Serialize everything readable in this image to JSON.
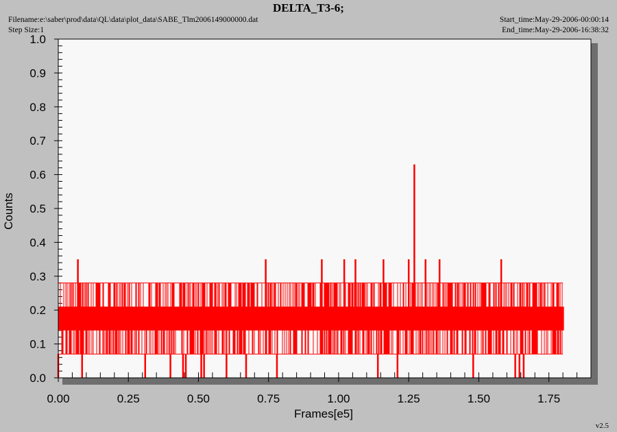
{
  "header": {
    "title": "DELTA_T3-6;",
    "filename": "Filename:e:\\saber\\prod\\data\\QL\\data\\plot_data\\SABE_Tlm2006149000000.dat",
    "step_size": "Step Size:1",
    "start_time": "Start_time:May-29-2006-00:00:14",
    "end_time": "End_time:May-29-2006-16:38:32",
    "version": "v2.5"
  },
  "colors": {
    "series": "#ff0000",
    "plot_background": "#f8f8f8",
    "page_background": "#c0c0c0",
    "shadow": "#6e6e6e"
  },
  "chart_data": {
    "type": "line",
    "title": "DELTA_T3-6;",
    "xlabel": "Frames[e5]",
    "ylabel": "Counts",
    "xlim": [
      0,
      1.9
    ],
    "ylim": [
      0,
      1.0
    ],
    "x_ticks": [
      "0.00",
      "0.25",
      "0.50",
      "0.75",
      "1.00",
      "1.25",
      "1.50",
      "1.75"
    ],
    "y_ticks": [
      "0.0",
      "0.1",
      "0.2",
      "0.3",
      "0.4",
      "0.5",
      "0.6",
      "0.7",
      "0.8",
      "0.9",
      "1.0"
    ],
    "grid": false,
    "legend": "none",
    "series": [
      {
        "x_range": [
          0,
          1.8
        ],
        "levels": [
          0.07,
          0.14,
          0.21,
          0.28
        ],
        "band": [
          0.07,
          0.28
        ],
        "dense_band": [
          0.14,
          0.21
        ],
        "spikes": [
          {
            "x": 0.07,
            "y": 0.35
          },
          {
            "x": 0.74,
            "y": 0.35
          },
          {
            "x": 0.94,
            "y": 0.35
          },
          {
            "x": 1.02,
            "y": 0.35
          },
          {
            "x": 1.06,
            "y": 0.35
          },
          {
            "x": 1.16,
            "y": 0.35
          },
          {
            "x": 1.25,
            "y": 0.35
          },
          {
            "x": 1.27,
            "y": 0.63
          },
          {
            "x": 1.31,
            "y": 0.35
          },
          {
            "x": 1.36,
            "y": 0.35
          },
          {
            "x": 1.58,
            "y": 0.35
          }
        ],
        "dropouts": [
          0.0,
          0.085,
          0.31,
          0.4,
          0.445,
          0.455,
          0.51,
          0.52,
          0.6,
          0.67,
          0.78,
          1.14,
          1.21,
          1.48,
          1.63,
          1.645,
          1.66
        ]
      }
    ]
  }
}
